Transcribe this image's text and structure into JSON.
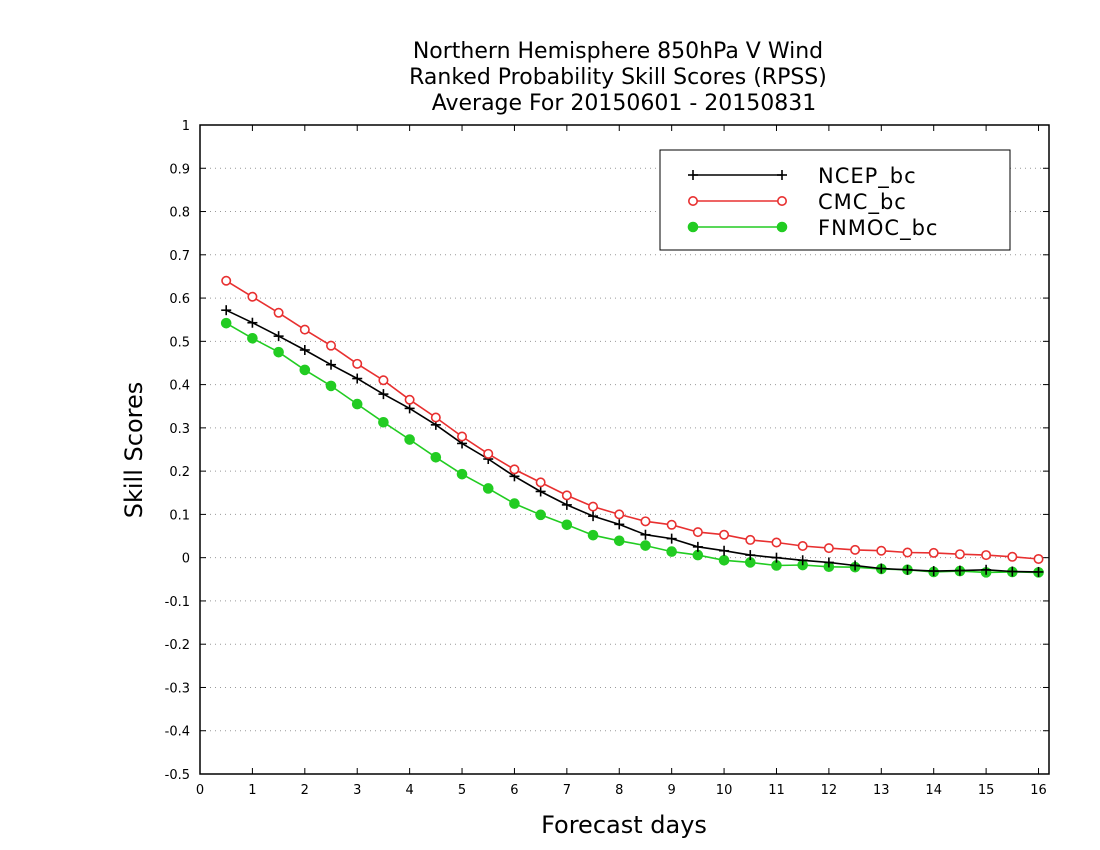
{
  "chart_data": {
    "type": "line",
    "title_lines": [
      "Northern Hemisphere 850hPa V Wind",
      "Ranked Probability Skill Scores (RPSS)",
      "Average For 20150601 - 20150831"
    ],
    "xlabel": "Forecast days",
    "ylabel": "Skill Scores",
    "xlim": [
      0,
      16.2
    ],
    "ylim": [
      -0.5,
      1
    ],
    "x_ticks": [
      0,
      1,
      2,
      3,
      4,
      5,
      6,
      7,
      8,
      9,
      10,
      11,
      12,
      13,
      14,
      15,
      16
    ],
    "y_ticks": [
      -0.5,
      -0.4,
      -0.3,
      -0.2,
      -0.1,
      0,
      0.1,
      0.2,
      0.3,
      0.4,
      0.5,
      0.6,
      0.7,
      0.8,
      0.9,
      1
    ],
    "y_tick_labels": [
      "-0.5",
      "-0.4",
      "-0.3",
      "-0.2",
      "-0.1",
      "0",
      "0.1",
      "0.2",
      "0.3",
      "0.4",
      "0.5",
      "0.6",
      "0.7",
      "0.8",
      "0.9",
      "1"
    ],
    "grid": "horizontal dotted",
    "legend_position": "top-right",
    "x": [
      0.5,
      1,
      1.5,
      2,
      2.5,
      3,
      3.5,
      4,
      4.5,
      5,
      5.5,
      6,
      6.5,
      7,
      7.5,
      8,
      8.5,
      9,
      9.5,
      10,
      10.5,
      11,
      11.5,
      12,
      12.5,
      13,
      13.5,
      14,
      14.5,
      15,
      15.5,
      16
    ],
    "series": [
      {
        "name": "NCEP_bc",
        "color": "#000000",
        "marker": "plus",
        "values": [
          0.572,
          0.543,
          0.512,
          0.48,
          0.446,
          0.414,
          0.378,
          0.345,
          0.307,
          0.264,
          0.228,
          0.188,
          0.153,
          0.122,
          0.096,
          0.077,
          0.053,
          0.044,
          0.025,
          0.016,
          0.006,
          0.0,
          -0.006,
          -0.011,
          -0.018,
          -0.025,
          -0.028,
          -0.031,
          -0.03,
          -0.028,
          -0.032,
          -0.033
        ]
      },
      {
        "name": "CMC_bc",
        "color": "#e83030",
        "marker": "open-circle",
        "values": [
          0.64,
          0.603,
          0.566,
          0.527,
          0.49,
          0.448,
          0.41,
          0.365,
          0.324,
          0.28,
          0.24,
          0.204,
          0.174,
          0.144,
          0.118,
          0.1,
          0.084,
          0.076,
          0.059,
          0.053,
          0.041,
          0.035,
          0.027,
          0.022,
          0.018,
          0.016,
          0.012,
          0.011,
          0.008,
          0.006,
          0.002,
          -0.003
        ]
      },
      {
        "name": "FNMOC_bc",
        "color": "#22cc22",
        "marker": "filled-circle",
        "values": [
          0.542,
          0.507,
          0.475,
          0.434,
          0.397,
          0.355,
          0.313,
          0.273,
          0.232,
          0.193,
          0.16,
          0.125,
          0.099,
          0.076,
          0.052,
          0.039,
          0.028,
          0.014,
          0.006,
          -0.006,
          -0.011,
          -0.018,
          -0.017,
          -0.021,
          -0.022,
          -0.026,
          -0.028,
          -0.033,
          -0.031,
          -0.034,
          -0.033,
          -0.034
        ]
      }
    ]
  }
}
